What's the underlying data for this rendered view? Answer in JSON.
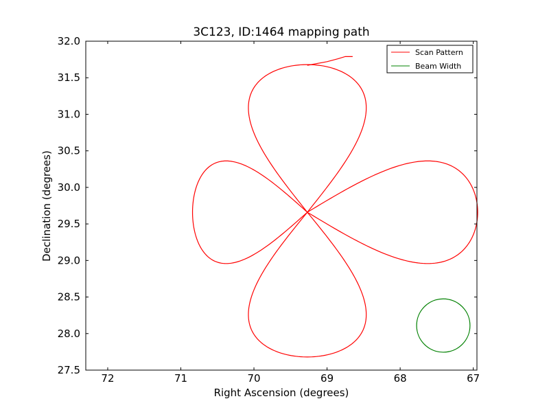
{
  "chart_data": {
    "type": "line",
    "title": "3C123, ID:1464 mapping path",
    "xlabel": "Right Ascension (degrees)",
    "ylabel": "Declination (degrees)",
    "xlim": [
      72.3,
      66.95
    ],
    "ylim": [
      27.5,
      32.0
    ],
    "x_inverted": true,
    "xticks": [
      72,
      71,
      70,
      69,
      68,
      67
    ],
    "xtick_labels": [
      "72",
      "71",
      "70",
      "69",
      "68",
      "67"
    ],
    "yticks": [
      27.5,
      28.0,
      28.5,
      29.0,
      29.5,
      30.0,
      30.5,
      31.0,
      31.5,
      32.0
    ],
    "ytick_labels": [
      "27.5",
      "28.0",
      "28.5",
      "29.0",
      "29.5",
      "30.0",
      "30.5",
      "31.0",
      "31.5",
      "32.0"
    ],
    "grid": false,
    "legend_position": "top-right",
    "series": [
      {
        "name": "Scan Pattern",
        "color": "#ff0000",
        "shape": "four-petal rose path (offset loops) plus slew track",
        "center": [
          69.27,
          29.66
        ],
        "petals": [
          {
            "direction": "north",
            "extent": 2.02,
            "half_width": 0.62
          },
          {
            "direction": "east",
            "extent": 2.33,
            "half_width": 0.54
          },
          {
            "direction": "south",
            "extent": 1.98,
            "half_width": 0.62
          },
          {
            "direction": "west",
            "extent": 1.57,
            "half_width": 0.54
          }
        ],
        "slew_track": [
          [
            69.27,
            31.67
          ],
          [
            69.0,
            31.72
          ],
          [
            68.85,
            31.76
          ],
          [
            68.75,
            31.79
          ],
          [
            68.65,
            31.79
          ]
        ]
      },
      {
        "name": "Beam Width",
        "color": "#008000",
        "shape": "circle",
        "center": [
          67.41,
          28.11
        ],
        "radius_deg": 0.365
      }
    ]
  }
}
